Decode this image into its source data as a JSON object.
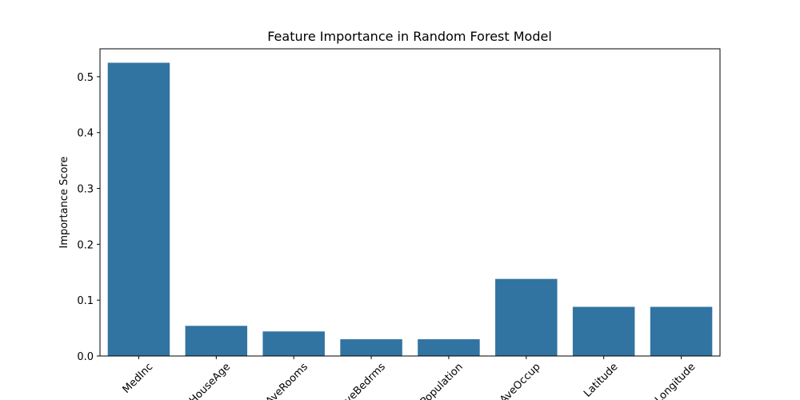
{
  "chart_data": {
    "type": "bar",
    "title": "Feature Importance in Random Forest Model",
    "xlabel": "",
    "ylabel": "Importance Score",
    "categories": [
      "MedInc",
      "HouseAge",
      "AveRooms",
      "AveBedrms",
      "Population",
      "AveOccup",
      "Latitude",
      "Longitude"
    ],
    "values": [
      0.525,
      0.054,
      0.044,
      0.03,
      0.03,
      0.138,
      0.088,
      0.088
    ],
    "ylim": [
      0,
      0.55
    ],
    "yticks": [
      0.0,
      0.1,
      0.2,
      0.3,
      0.4,
      0.5
    ],
    "ytick_labels": [
      "0.0",
      "0.1",
      "0.2",
      "0.3",
      "0.4",
      "0.5"
    ],
    "bar_color": "#3274a1",
    "grid": false,
    "legend": "none"
  }
}
